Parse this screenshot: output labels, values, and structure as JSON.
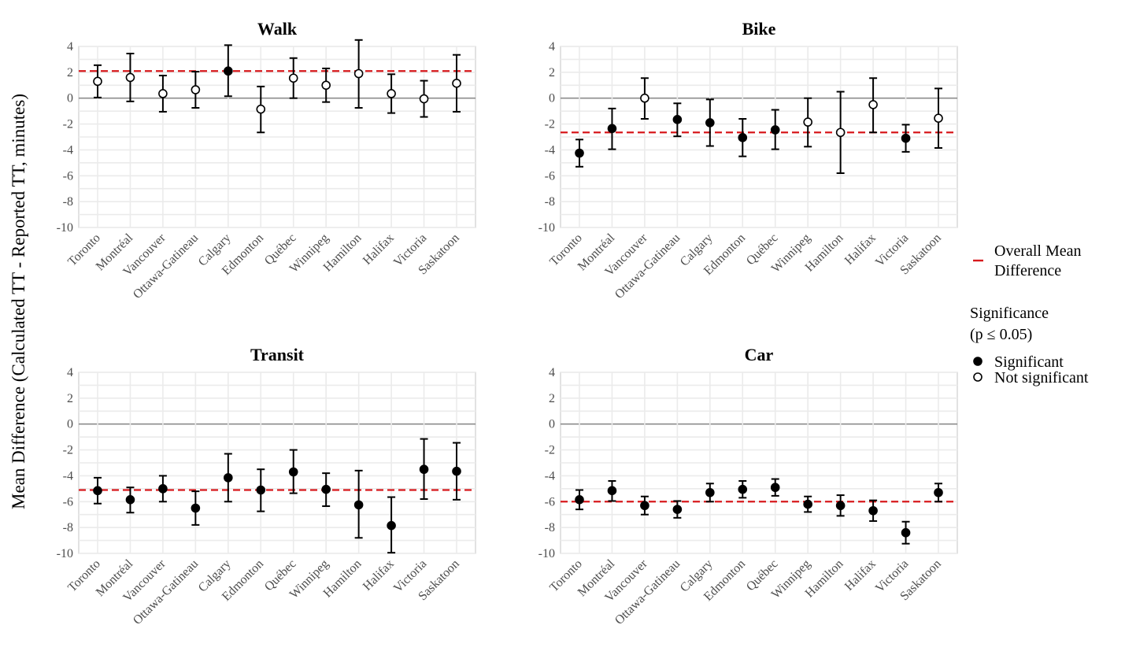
{
  "chart_data": {
    "type": "scatter",
    "ylabel": "Mean Difference (Calculated TT - Reported TT, minutes)",
    "ylim": [
      -10,
      4
    ],
    "yticks": [
      4,
      2,
      0,
      -2,
      -4,
      -6,
      -8,
      -10
    ],
    "categories": [
      "Toronto",
      "Montréal",
      "Vancouver",
      "Ottawa-Gatineau",
      "Calgary",
      "Edmonton",
      "Québec",
      "Winnipeg",
      "Hamilton",
      "Halifax",
      "Victoria",
      "Saskatoon"
    ],
    "legend": {
      "mean_label_lines": [
        "Overall Mean",
        "Difference"
      ],
      "significance_title_lines": [
        "Significance",
        "(p ≤ 0.05)"
      ],
      "significant_label": "Significant",
      "not_significant_label": "Not significant",
      "mean_color": "#d7191c"
    },
    "panels": [
      {
        "title": "Walk",
        "overall_mean": 2.1,
        "mean": [
          1.3,
          1.6,
          0.35,
          0.65,
          2.1,
          -0.85,
          1.55,
          1.0,
          1.9,
          0.35,
          -0.05,
          1.15
        ],
        "lower": [
          0.05,
          -0.25,
          -1.05,
          -0.75,
          0.15,
          -2.65,
          0.0,
          -0.3,
          -0.75,
          -1.15,
          -1.45,
          -1.05
        ],
        "upper": [
          2.55,
          3.45,
          1.75,
          2.05,
          4.1,
          0.9,
          3.1,
          2.3,
          4.5,
          1.85,
          1.35,
          3.35
        ],
        "significant": [
          false,
          false,
          false,
          false,
          true,
          false,
          false,
          false,
          false,
          false,
          false,
          false
        ]
      },
      {
        "title": "Bike",
        "overall_mean": -2.65,
        "mean": [
          -4.25,
          -2.35,
          0.0,
          -1.65,
          -1.9,
          -3.05,
          -2.45,
          -1.85,
          -2.65,
          -0.5,
          -3.1,
          -1.55
        ],
        "lower": [
          -5.3,
          -3.95,
          -1.6,
          -2.95,
          -3.7,
          -4.5,
          -3.95,
          -3.75,
          -5.8,
          -2.65,
          -4.15,
          -3.85
        ],
        "upper": [
          -3.2,
          -0.8,
          1.55,
          -0.4,
          -0.1,
          -1.6,
          -0.9,
          0.0,
          0.5,
          1.55,
          -2.05,
          0.75
        ],
        "significant": [
          true,
          true,
          false,
          true,
          true,
          true,
          true,
          false,
          false,
          false,
          true,
          false
        ]
      },
      {
        "title": "Transit",
        "overall_mean": -5.1,
        "mean": [
          -5.15,
          -5.85,
          -5.0,
          -6.5,
          -4.15,
          -5.1,
          -3.7,
          -5.05,
          -6.25,
          -7.85,
          -3.5,
          -3.65
        ],
        "lower": [
          -6.15,
          -6.85,
          -6.0,
          -7.8,
          -6.0,
          -6.75,
          -5.35,
          -6.35,
          -8.8,
          -9.95,
          -5.8,
          -5.85
        ],
        "upper": [
          -4.15,
          -4.9,
          -4.0,
          -5.2,
          -2.3,
          -3.5,
          -2.0,
          -3.8,
          -3.6,
          -5.65,
          -1.15,
          -1.45
        ],
        "significant": [
          true,
          true,
          true,
          true,
          true,
          true,
          true,
          true,
          true,
          true,
          true,
          true
        ]
      },
      {
        "title": "Car",
        "overall_mean": -6.0,
        "mean": [
          -5.85,
          -5.15,
          -6.3,
          -6.6,
          -5.3,
          -5.05,
          -4.9,
          -6.2,
          -6.3,
          -6.7,
          -8.4,
          -5.3
        ],
        "lower": [
          -6.6,
          -5.95,
          -7.0,
          -7.25,
          -6.0,
          -5.7,
          -5.55,
          -6.8,
          -7.1,
          -7.5,
          -9.25,
          -6.0
        ],
        "upper": [
          -5.1,
          -4.4,
          -5.6,
          -5.95,
          -4.6,
          -4.4,
          -4.25,
          -5.6,
          -5.5,
          -5.9,
          -7.55,
          -4.6
        ],
        "significant": [
          true,
          true,
          true,
          true,
          true,
          true,
          true,
          true,
          true,
          true,
          true,
          true
        ]
      }
    ]
  }
}
